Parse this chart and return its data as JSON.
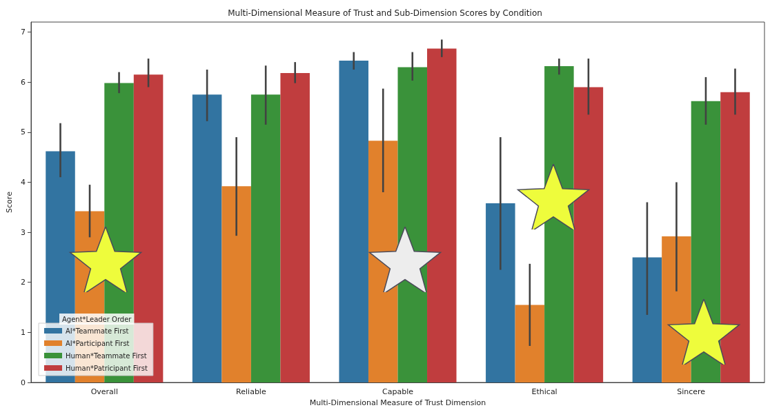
{
  "chart_data": {
    "type": "bar",
    "title": "Multi-Dimensional Measure of Trust and Sub-Dimension Scores by Condition",
    "xlabel": "Multi-Dimensional Measure of Trust Dimension",
    "ylabel": "Score",
    "legend_title": "Agent*Leader Order",
    "categories": [
      "Overall",
      "Reliable",
      "Capable",
      "Ethical",
      "Sincere"
    ],
    "series": [
      {
        "name": "AI*Teammate First",
        "color": "#3274a1",
        "values": [
          4.62,
          5.75,
          6.43,
          3.58,
          2.5
        ],
        "errors": [
          [
            4.1,
            5.18
          ],
          [
            5.22,
            6.25
          ],
          [
            6.25,
            6.6
          ],
          [
            2.25,
            4.9
          ],
          [
            1.35,
            3.6
          ]
        ]
      },
      {
        "name": "AI*Participant First",
        "color": "#e1812c",
        "values": [
          3.42,
          3.92,
          4.83,
          1.55,
          2.92
        ],
        "errors": [
          [
            2.9,
            3.95
          ],
          [
            2.93,
            4.9
          ],
          [
            3.8,
            5.87
          ],
          [
            0.73,
            2.37
          ],
          [
            1.82,
            4.0
          ]
        ]
      },
      {
        "name": "Human*Teammate First",
        "color": "#3a923a",
        "values": [
          5.98,
          5.75,
          6.3,
          6.32,
          5.62
        ],
        "errors": [
          [
            5.78,
            6.2
          ],
          [
            5.15,
            6.33
          ],
          [
            6.03,
            6.6
          ],
          [
            6.15,
            6.47
          ],
          [
            5.15,
            6.1
          ]
        ]
      },
      {
        "name": "Human*Patricipant First",
        "color": "#c03d3e",
        "values": [
          6.15,
          6.18,
          6.67,
          5.9,
          5.8
        ],
        "errors": [
          [
            5.9,
            6.47
          ],
          [
            5.98,
            6.4
          ],
          [
            6.5,
            6.85
          ],
          [
            5.35,
            6.47
          ],
          [
            5.35,
            6.27
          ]
        ]
      }
    ],
    "ylim": [
      0,
      7.2
    ],
    "yticks": [
      0,
      1,
      2,
      3,
      4,
      5,
      6,
      7
    ],
    "grid": false,
    "legend": "bottom left"
  }
}
